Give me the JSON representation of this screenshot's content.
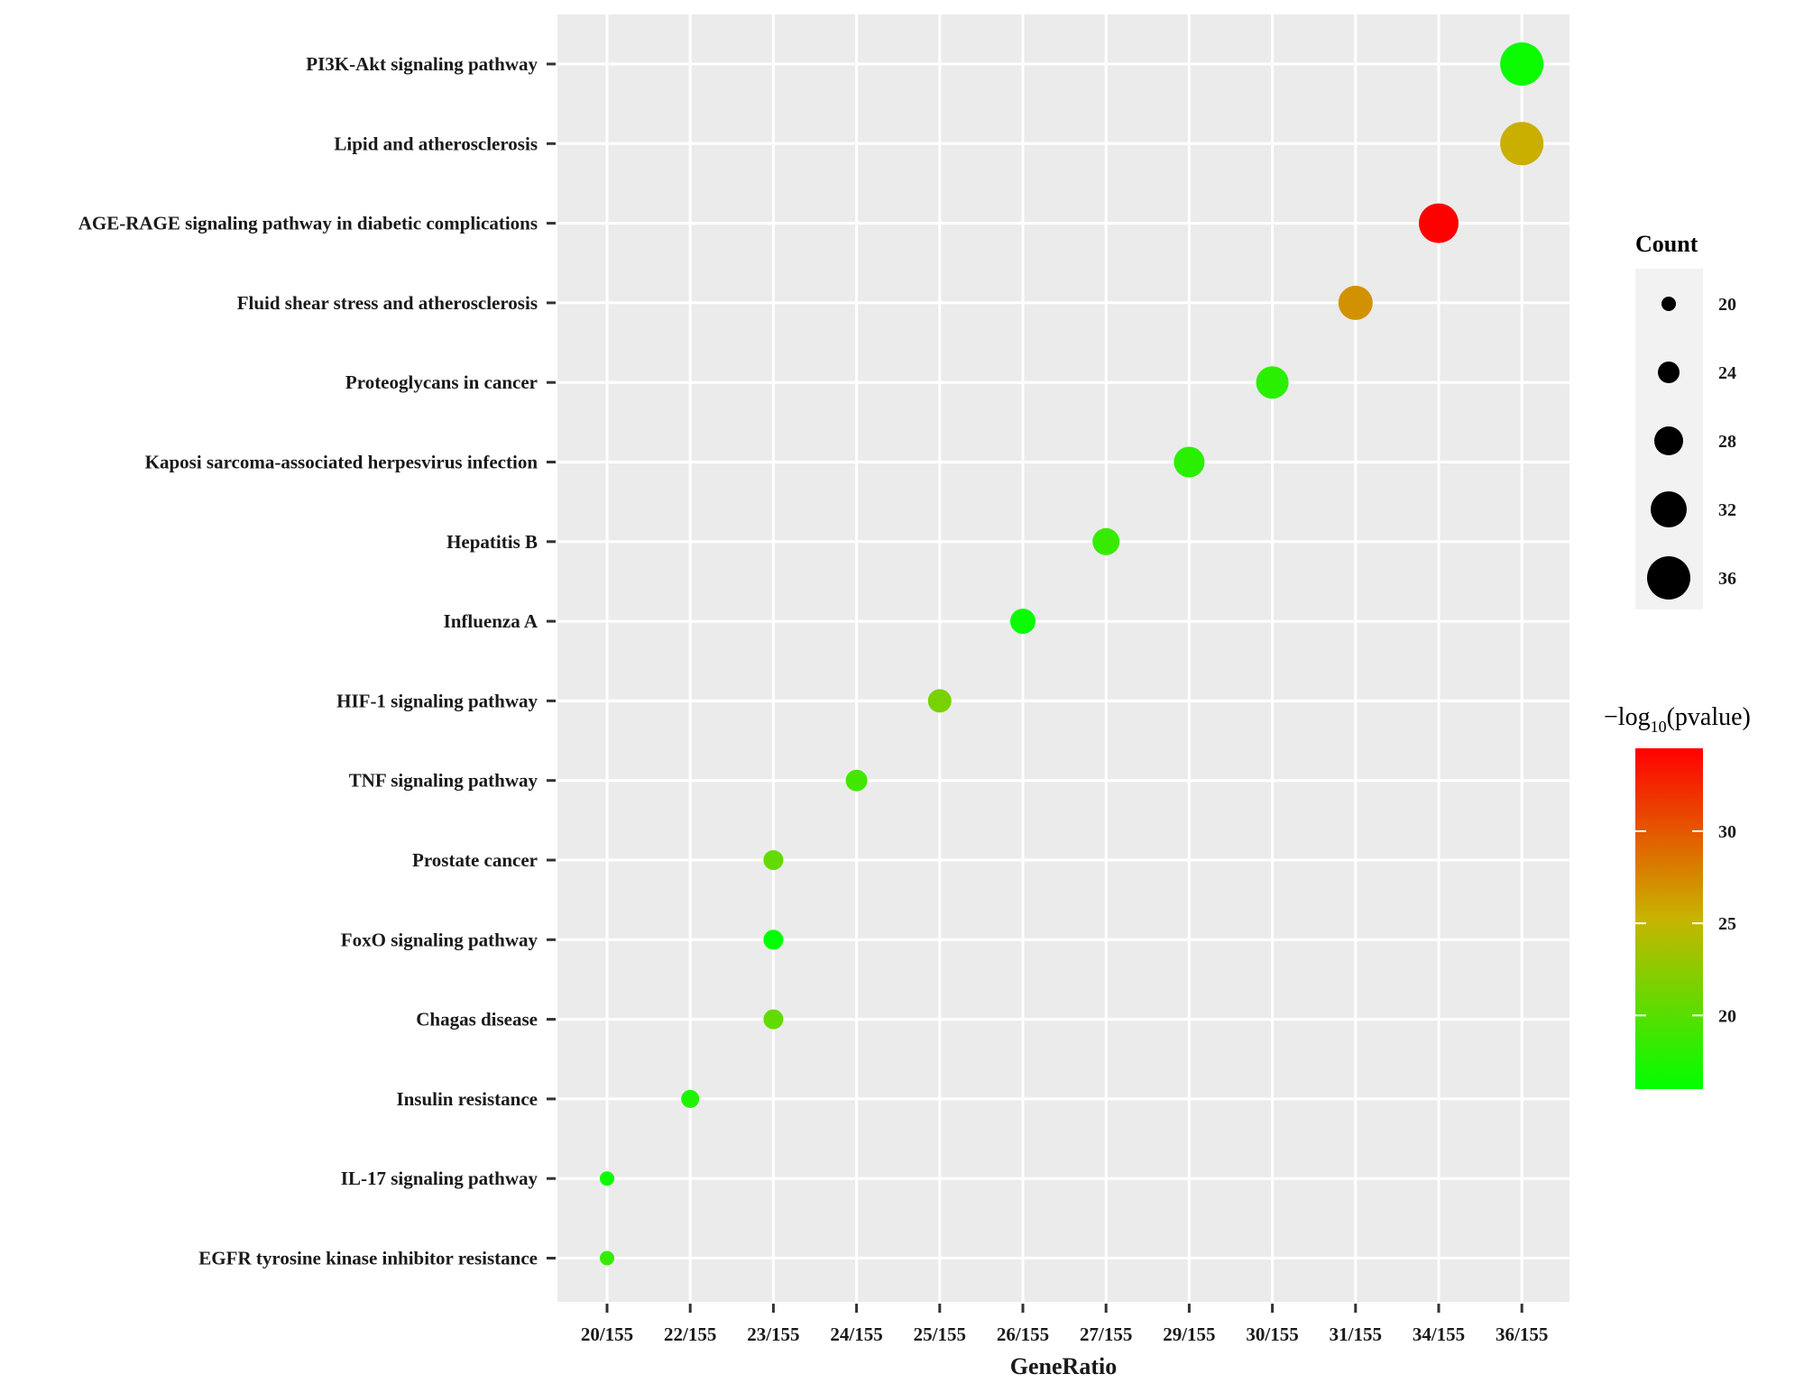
{
  "chart_data": {
    "type": "scatter",
    "xlabel": "GeneRatio",
    "ylabel": "",
    "x_categories": [
      "20/155",
      "22/155",
      "23/155",
      "24/155",
      "25/155",
      "26/155",
      "27/155",
      "29/155",
      "30/155",
      "31/155",
      "34/155",
      "36/155"
    ],
    "y_categories": [
      "EGFR tyrosine kinase inhibitor resistance",
      "IL-17 signaling pathway",
      "Insulin resistance",
      "Chagas disease",
      "FoxO signaling pathway",
      "Prostate cancer",
      "TNF signaling pathway",
      "HIF-1 signaling pathway",
      "Influenza A",
      "Hepatitis B",
      "Kaposi sarcoma-associated herpesvirus infection",
      "Proteoglycans in cancer",
      "Fluid shear stress and atherosclerosis",
      "AGE-RAGE signaling pathway in diabetic complications",
      "Lipid and atherosclerosis",
      "PI3K-Akt signaling pathway"
    ],
    "points": [
      {
        "term": "EGFR tyrosine kinase inhibitor resistance",
        "gene_ratio": "20/155",
        "count": 20,
        "neg_log10_pvalue": 18.5
      },
      {
        "term": "IL-17 signaling pathway",
        "gene_ratio": "20/155",
        "count": 20,
        "neg_log10_pvalue": 16.5
      },
      {
        "term": "Insulin resistance",
        "gene_ratio": "22/155",
        "count": 22,
        "neg_log10_pvalue": 17.5
      },
      {
        "term": "Chagas disease",
        "gene_ratio": "23/155",
        "count": 23,
        "neg_log10_pvalue": 20.5
      },
      {
        "term": "FoxO signaling pathway",
        "gene_ratio": "23/155",
        "count": 23,
        "neg_log10_pvalue": 16
      },
      {
        "term": "Prostate cancer",
        "gene_ratio": "23/155",
        "count": 23,
        "neg_log10_pvalue": 20.5
      },
      {
        "term": "TNF signaling pathway",
        "gene_ratio": "24/155",
        "count": 24,
        "neg_log10_pvalue": 19
      },
      {
        "term": "HIF-1 signaling pathway",
        "gene_ratio": "25/155",
        "count": 25,
        "neg_log10_pvalue": 21.5
      },
      {
        "term": "Influenza A",
        "gene_ratio": "26/155",
        "count": 26,
        "neg_log10_pvalue": 16.5
      },
      {
        "term": "Hepatitis B",
        "gene_ratio": "27/155",
        "count": 27,
        "neg_log10_pvalue": 18.5
      },
      {
        "term": "Kaposi sarcoma-associated herpesvirus infection",
        "gene_ratio": "29/155",
        "count": 29,
        "neg_log10_pvalue": 18
      },
      {
        "term": "Proteoglycans in cancer",
        "gene_ratio": "30/155",
        "count": 30,
        "neg_log10_pvalue": 18
      },
      {
        "term": "Fluid shear stress and atherosclerosis",
        "gene_ratio": "31/155",
        "count": 31,
        "neg_log10_pvalue": 27
      },
      {
        "term": "AGE-RAGE signaling pathway in diabetic complications",
        "gene_ratio": "34/155",
        "count": 34,
        "neg_log10_pvalue": 34.5
      },
      {
        "term": "Lipid and atherosclerosis",
        "gene_ratio": "36/155",
        "count": 36,
        "neg_log10_pvalue": 25.5
      },
      {
        "term": "PI3K-Akt signaling pathway",
        "gene_ratio": "36/155",
        "count": 36,
        "neg_log10_pvalue": 16.5
      }
    ],
    "size_legend": {
      "title": "Count",
      "values": [
        20,
        24,
        28,
        32,
        36
      ]
    },
    "color_legend": {
      "title_prefix": "−log",
      "title_subscript": "10",
      "title_suffix": "(pvalue)",
      "ticks": [
        20,
        25,
        30
      ],
      "range": [
        16,
        34.5
      ],
      "low_color": "#00ff00",
      "mid_color": "#c8b400",
      "high_color": "#ff0000"
    },
    "panel_background": "#ebebeb",
    "grid": true,
    "legend_position": "right"
  }
}
